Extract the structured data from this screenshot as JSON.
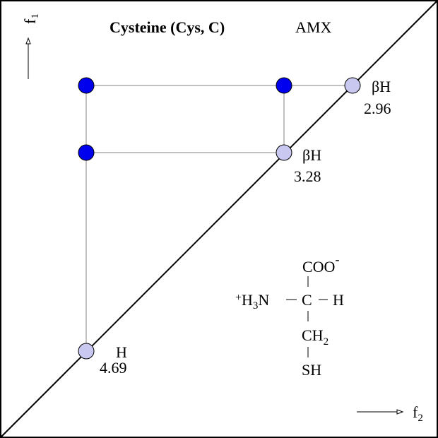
{
  "title": "Cysteine (Cys, C)",
  "spin_system": "AMX",
  "axes": {
    "f1": "f",
    "f1_sub": "1",
    "f2": "f",
    "f2_sub": "2"
  },
  "peaks": [
    {
      "label": "βH",
      "shift": "2.96"
    },
    {
      "label": "βH",
      "shift": "3.28"
    },
    {
      "label": "H",
      "shift": "4.69"
    }
  ],
  "structure": {
    "top": "COO",
    "top_charge": "-",
    "left_charge": "+",
    "left": "H",
    "left_sub": "3",
    "left_n": "N",
    "center": "C",
    "right": "H",
    "ch": "CH",
    "ch_sub": "2",
    "sh": "SH"
  },
  "colors": {
    "cross_peak": "#0000ee",
    "diagonal_peak": "#c8c8f0",
    "lines": "#808080"
  }
}
